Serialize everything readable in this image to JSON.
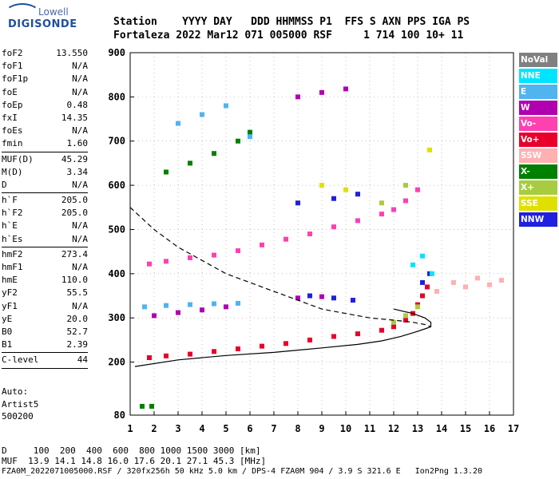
{
  "logo": {
    "line1": "Lowell",
    "line2": "DIGISONDE"
  },
  "header": {
    "row1": "Station    YYYY DAY   DDD HHMMSS P1  FFS S AXN PPS IGA PS",
    "row2": "Fortaleza 2022 Mar12 071 005000 RSF     1 714 100 10+ 11"
  },
  "params": {
    "group1": [
      {
        "name": "foF2",
        "value": "13.550"
      },
      {
        "name": "foF1",
        "value": "N/A"
      },
      {
        "name": "foF1p",
        "value": "N/A"
      },
      {
        "name": "foE",
        "value": "N/A"
      },
      {
        "name": "foEp",
        "value": "0.48"
      },
      {
        "name": "fxI",
        "value": "14.35"
      },
      {
        "name": "foEs",
        "value": "N/A"
      },
      {
        "name": "fmin",
        "value": "1.60"
      }
    ],
    "group2": [
      {
        "name": "MUF(D)",
        "value": "45.29"
      },
      {
        "name": "M(D)",
        "value": "3.34"
      },
      {
        "name": "D",
        "value": "N/A"
      }
    ],
    "group3": [
      {
        "name": "h`F",
        "value": "205.0"
      },
      {
        "name": "h`F2",
        "value": "205.0"
      },
      {
        "name": "h`E",
        "value": "N/A"
      },
      {
        "name": "h`Es",
        "value": "N/A"
      }
    ],
    "group4": [
      {
        "name": "hmF2",
        "value": "273.4"
      },
      {
        "name": "hmF1",
        "value": "N/A"
      },
      {
        "name": "hmE",
        "value": "110.0"
      },
      {
        "name": "yF2",
        "value": "55.5"
      },
      {
        "name": "yF1",
        "value": "N/A"
      },
      {
        "name": "yE",
        "value": "20.0"
      },
      {
        "name": "B0",
        "value": "52.7"
      },
      {
        "name": "B1",
        "value": "2.39"
      }
    ],
    "group5": [
      {
        "name": "C-level",
        "value": "44"
      }
    ]
  },
  "auto": {
    "line1": "Auto:",
    "line2": "Artist5",
    "line3": "500200"
  },
  "footer": {
    "d_row": "D     100  200  400  600  800 1000 1500 3000 [km]",
    "muf_row": "MUF  13.9 14.1 14.8 16.0 17.6 20.1 27.1 45.3 [MHz]",
    "file_row": "FZA0M_2022071005000.RSF / 320fx256h 50 kHz 5.0 km / DPS-4 FZA0M 904 / 3.9 S 321.6 E   Ion2Png 1.3.20"
  },
  "legend": [
    {
      "label": "NoVal",
      "color": "#808080"
    },
    {
      "label": "NNE",
      "color": "#00e5ff"
    },
    {
      "label": "E",
      "color": "#4fb4f0"
    },
    {
      "label": "W",
      "color": "#b000b0"
    },
    {
      "label": "Vo-",
      "color": "#ff40b0"
    },
    {
      "label": "Vo+",
      "color": "#e8002a"
    },
    {
      "label": "SSW",
      "color": "#ffb0b0"
    },
    {
      "label": "X-",
      "color": "#008000"
    },
    {
      "label": "X+",
      "color": "#a8cc40"
    },
    {
      "label": "SSE",
      "color": "#e0e000"
    },
    {
      "label": "NNW",
      "color": "#2020e0"
    }
  ],
  "chart_data": {
    "type": "scatter",
    "title": "",
    "xlabel": "",
    "ylabel": "",
    "xlim": [
      1,
      17
    ],
    "ylim": [
      80,
      900
    ],
    "xticks": [
      1,
      2,
      3,
      4,
      5,
      6,
      7,
      8,
      9,
      10,
      11,
      12,
      13,
      14,
      15,
      16,
      17
    ],
    "yticks": [
      80,
      200,
      300,
      400,
      500,
      600,
      700,
      800,
      900
    ],
    "grid": "dotted",
    "legend_position": "right",
    "series": [
      {
        "name": "Vo+",
        "color": "#e8002a",
        "points": [
          [
            1.8,
            210
          ],
          [
            2.5,
            214
          ],
          [
            3.5,
            218
          ],
          [
            4.5,
            224
          ],
          [
            5.5,
            230
          ],
          [
            6.5,
            236
          ],
          [
            7.5,
            242
          ],
          [
            8.5,
            250
          ],
          [
            9.5,
            258
          ],
          [
            10.5,
            264
          ],
          [
            11.5,
            272
          ],
          [
            12.0,
            280
          ],
          [
            12.5,
            295
          ],
          [
            12.8,
            310
          ],
          [
            13.0,
            330
          ],
          [
            13.2,
            350
          ],
          [
            13.4,
            370
          ]
        ]
      },
      {
        "name": "Vo-",
        "color": "#ff40b0",
        "points": [
          [
            1.8,
            422
          ],
          [
            2.5,
            428
          ],
          [
            3.5,
            436
          ],
          [
            4.5,
            442
          ],
          [
            5.5,
            452
          ],
          [
            6.5,
            465
          ],
          [
            7.5,
            478
          ],
          [
            8.5,
            490
          ],
          [
            9.5,
            506
          ],
          [
            10.5,
            520
          ],
          [
            11.5,
            535
          ],
          [
            12.0,
            545
          ],
          [
            12.5,
            565
          ],
          [
            13.0,
            590
          ]
        ]
      },
      {
        "name": "X-",
        "color": "#008000",
        "points": [
          [
            1.5,
            100
          ],
          [
            1.9,
            100
          ],
          [
            2.5,
            630
          ],
          [
            3.5,
            650
          ],
          [
            4.5,
            672
          ],
          [
            5.5,
            700
          ],
          [
            6.0,
            720
          ]
        ]
      },
      {
        "name": "E",
        "color": "#4fb4f0",
        "points": [
          [
            1.6,
            325
          ],
          [
            2.5,
            328
          ],
          [
            3.5,
            330
          ],
          [
            4.5,
            332
          ],
          [
            5.5,
            333
          ],
          [
            3.0,
            740
          ],
          [
            4.0,
            760
          ],
          [
            5.0,
            780
          ],
          [
            6.0,
            710
          ]
        ]
      },
      {
        "name": "W",
        "color": "#b000b0",
        "points": [
          [
            2.0,
            305
          ],
          [
            3.0,
            312
          ],
          [
            4.0,
            318
          ],
          [
            5.0,
            325
          ],
          [
            8.0,
            345
          ],
          [
            9.0,
            348
          ],
          [
            8.0,
            800
          ],
          [
            9.0,
            810
          ],
          [
            10.0,
            818
          ]
        ]
      },
      {
        "name": "NNW",
        "color": "#2020e0",
        "points": [
          [
            8.5,
            350
          ],
          [
            9.5,
            345
          ],
          [
            10.3,
            340
          ],
          [
            8.0,
            560
          ],
          [
            9.5,
            570
          ],
          [
            10.5,
            580
          ],
          [
            13.2,
            380
          ],
          [
            13.5,
            400
          ]
        ]
      },
      {
        "name": "SSW",
        "color": "#ffb0b0",
        "points": [
          [
            13.8,
            360
          ],
          [
            14.5,
            380
          ],
          [
            15.0,
            370
          ],
          [
            15.5,
            390
          ],
          [
            16.0,
            375
          ],
          [
            16.5,
            385
          ]
        ]
      },
      {
        "name": "X+",
        "color": "#a8cc40",
        "points": [
          [
            12.0,
            290
          ],
          [
            12.5,
            305
          ],
          [
            13.0,
            325
          ],
          [
            11.5,
            560
          ],
          [
            12.5,
            600
          ]
        ]
      },
      {
        "name": "SSE",
        "color": "#e0e000",
        "points": [
          [
            9.0,
            600
          ],
          [
            10.0,
            590
          ],
          [
            13.5,
            680
          ]
        ]
      },
      {
        "name": "NNE",
        "color": "#00e5ff",
        "points": [
          [
            12.8,
            420
          ],
          [
            13.2,
            440
          ],
          [
            13.6,
            400
          ]
        ]
      }
    ],
    "profile_solid": [
      [
        1.2,
        190
      ],
      [
        3,
        205
      ],
      [
        5,
        215
      ],
      [
        7,
        222
      ],
      [
        9,
        232
      ],
      [
        10.5,
        240
      ],
      [
        11.5,
        248
      ],
      [
        12.3,
        258
      ],
      [
        12.9,
        268
      ],
      [
        13.3,
        275
      ],
      [
        13.55,
        280
      ],
      [
        13.55,
        290
      ],
      [
        13.3,
        300
      ],
      [
        12.8,
        310
      ],
      [
        12,
        320
      ]
    ],
    "profile_dashed": [
      [
        1.0,
        550
      ],
      [
        2,
        500
      ],
      [
        3,
        460
      ],
      [
        4,
        430
      ],
      [
        5,
        400
      ],
      [
        6,
        380
      ],
      [
        7,
        360
      ],
      [
        8,
        340
      ],
      [
        9,
        320
      ],
      [
        10,
        310
      ],
      [
        11,
        300
      ],
      [
        12,
        295
      ],
      [
        12.8,
        290
      ],
      [
        13.3,
        285
      ],
      [
        13.55,
        280
      ]
    ]
  }
}
